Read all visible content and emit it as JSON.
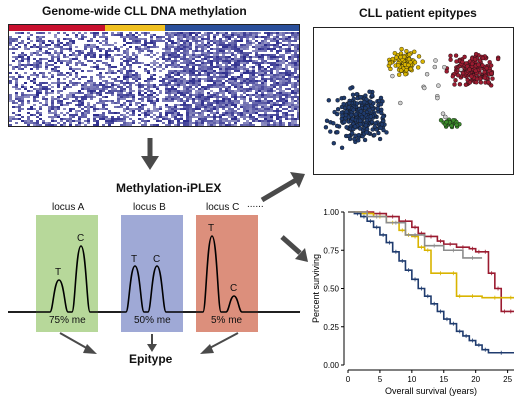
{
  "panels": {
    "heatmap_title": "Genome-wide CLL DNA methylation",
    "epitypes_title": "CLL patient epitypes",
    "iplex_title": "Methylation-iPLEX",
    "epitype_label": "Epitype"
  },
  "loci": [
    {
      "name": "locus A",
      "color": "#b7d89a",
      "t_label": "T",
      "c_label": "C",
      "pct": "75% me"
    },
    {
      "name": "locus B",
      "color": "#9fa9d6",
      "t_label": "T",
      "c_label": "C",
      "pct": "50% me"
    },
    {
      "name": "locus C",
      "color": "#dc8f7c",
      "t_label": "T",
      "c_label": "C",
      "pct": "5% me"
    }
  ],
  "loci_ellipsis": "......",
  "colors": {
    "heatmap_bar": [
      "#c8102e",
      "#f0c020",
      "#2a4f9a"
    ],
    "heatmap_base": "#2b2b8c",
    "cluster_blue": "#1f3b6e",
    "cluster_yellow": "#d9b400",
    "cluster_red": "#9b1b30",
    "cluster_green": "#3a8a2a",
    "arrow": "#4a4a4a"
  },
  "chart_data": {
    "type": "line",
    "title": "",
    "xlabel": "Overall survival (years)",
    "ylabel": "Percent surviving",
    "xlim": [
      0,
      26
    ],
    "ylim": [
      0,
      1.0
    ],
    "xticks": [
      "0",
      "5",
      "10",
      "15",
      "20",
      "25"
    ],
    "yticks": [
      "0.00",
      "0.25",
      "0.50",
      "0.75",
      "1.00"
    ],
    "series": [
      {
        "color": "#9b1b30",
        "points": [
          [
            0,
            1.0
          ],
          [
            2,
            1.0
          ],
          [
            4,
            0.99
          ],
          [
            6,
            0.97
          ],
          [
            8,
            0.94
          ],
          [
            10,
            0.9
          ],
          [
            11,
            0.86
          ],
          [
            12,
            0.84
          ],
          [
            14,
            0.81
          ],
          [
            15,
            0.79
          ],
          [
            17,
            0.77
          ],
          [
            19,
            0.76
          ],
          [
            20,
            0.74
          ],
          [
            21,
            0.74
          ],
          [
            22,
            0.6
          ],
          [
            23,
            0.5
          ],
          [
            24,
            0.35
          ],
          [
            25,
            0.35
          ],
          [
            26,
            0.35
          ]
        ]
      },
      {
        "color": "#d9b400",
        "points": [
          [
            0,
            1.0
          ],
          [
            2,
            0.99
          ],
          [
            4,
            0.97
          ],
          [
            6,
            0.93
          ],
          [
            8,
            0.88
          ],
          [
            9,
            0.85
          ],
          [
            10,
            0.84
          ],
          [
            11,
            0.77
          ],
          [
            12,
            0.75
          ],
          [
            13,
            0.6
          ],
          [
            16,
            0.6
          ],
          [
            17,
            0.45
          ],
          [
            18,
            0.45
          ],
          [
            21,
            0.44
          ],
          [
            25,
            0.44
          ],
          [
            26,
            0.44
          ]
        ]
      },
      {
        "color": "#1f3b6e",
        "points": [
          [
            0,
            1.0
          ],
          [
            1,
            0.99
          ],
          [
            2,
            0.97
          ],
          [
            3,
            0.94
          ],
          [
            4,
            0.9
          ],
          [
            5,
            0.85
          ],
          [
            6,
            0.8
          ],
          [
            7,
            0.74
          ],
          [
            8,
            0.68
          ],
          [
            9,
            0.62
          ],
          [
            10,
            0.56
          ],
          [
            11,
            0.5
          ],
          [
            12,
            0.45
          ],
          [
            13,
            0.4
          ],
          [
            14,
            0.35
          ],
          [
            15,
            0.3
          ],
          [
            16,
            0.27
          ],
          [
            17,
            0.22
          ],
          [
            18,
            0.19
          ],
          [
            19,
            0.16
          ],
          [
            20,
            0.13
          ],
          [
            21,
            0.1
          ],
          [
            22,
            0.08
          ],
          [
            26,
            0.08
          ]
        ]
      },
      {
        "color": "#8c8c8c",
        "points": [
          [
            0,
            1.0
          ],
          [
            3,
            0.97
          ],
          [
            6,
            0.93
          ],
          [
            9,
            0.85
          ],
          [
            12,
            0.78
          ],
          [
            15,
            0.75
          ],
          [
            18,
            0.7
          ],
          [
            21,
            0.7
          ]
        ]
      }
    ]
  }
}
